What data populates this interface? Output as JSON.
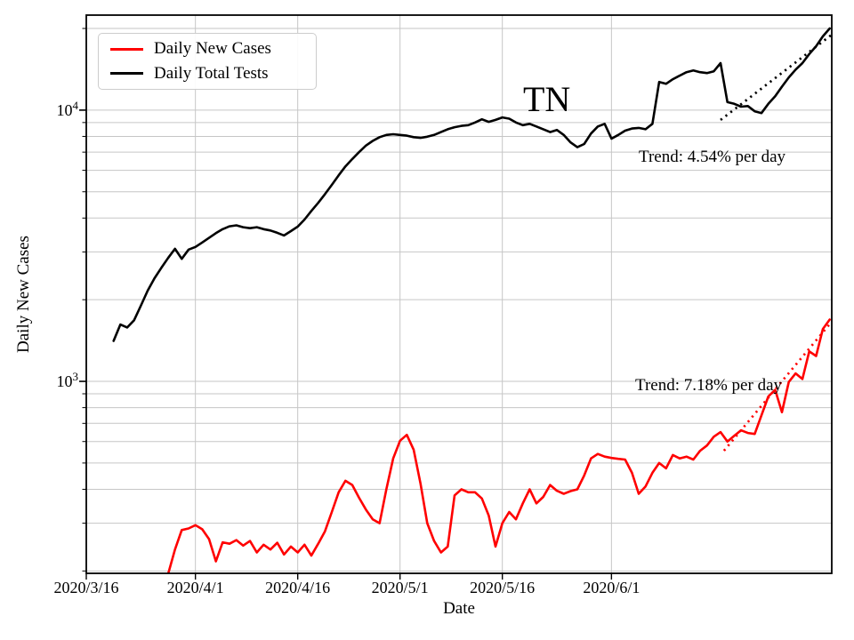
{
  "chart_data": {
    "type": "line",
    "title": "TN",
    "xlabel": "Date",
    "ylabel": "Daily New Cases",
    "y_scale": "log",
    "ylim": [
      196,
      22400
    ],
    "xlim": [
      0,
      109.3
    ],
    "x_unit": "days since 2020/3/16",
    "grid": true,
    "legend_position": "upper left",
    "x_ticks": [
      {
        "day": 0,
        "label": "2020/3/16"
      },
      {
        "day": 16,
        "label": "2020/4/1"
      },
      {
        "day": 31,
        "label": "2020/4/16"
      },
      {
        "day": 46,
        "label": "2020/5/1"
      },
      {
        "day": 61,
        "label": "2020/5/16"
      },
      {
        "day": 77,
        "label": "2020/6/1"
      }
    ],
    "y_ticks": [
      {
        "value": 10000,
        "base": "10",
        "exp": "4"
      },
      {
        "value": 1000,
        "base": "10",
        "exp": "3"
      }
    ],
    "series": [
      {
        "name": "Daily New Cases",
        "color": "#ff0000",
        "line_width": 2.6,
        "start_day": 12,
        "values": [
          195,
          240,
          283,
          287,
          295,
          285,
          262,
          217,
          255,
          252,
          260,
          248,
          258,
          234,
          250,
          240,
          254,
          230,
          246,
          234,
          250,
          228,
          252,
          280,
          330,
          390,
          430,
          415,
          372,
          337,
          310,
          300,
          400,
          520,
          604,
          635,
          560,
          420,
          300,
          258,
          234,
          246,
          380,
          400,
          390,
          390,
          370,
          320,
          246,
          300,
          330,
          310,
          355,
          400,
          355,
          375,
          415,
          395,
          385,
          394,
          400,
          450,
          520,
          540,
          528,
          522,
          518,
          515,
          460,
          385,
          410,
          460,
          500,
          478,
          535,
          520,
          528,
          515,
          555,
          580,
          625,
          650,
          600,
          630,
          660,
          645,
          640,
          750,
          880,
          930,
          770,
          995,
          1070,
          1020,
          1290,
          1240,
          1560,
          1690
        ]
      },
      {
        "name": "Daily Total Tests",
        "color": "#000000",
        "line_width": 2.6,
        "start_day": 4,
        "values": [
          1410,
          1620,
          1580,
          1680,
          1900,
          2160,
          2400,
          2620,
          2850,
          3080,
          2830,
          3060,
          3130,
          3250,
          3380,
          3520,
          3640,
          3730,
          3760,
          3700,
          3670,
          3700,
          3640,
          3600,
          3530,
          3450,
          3580,
          3720,
          3950,
          4250,
          4550,
          4900,
          5300,
          5750,
          6200,
          6600,
          7000,
          7400,
          7700,
          7950,
          8100,
          8150,
          8100,
          8050,
          7950,
          7900,
          7980,
          8100,
          8300,
          8500,
          8650,
          8750,
          8800,
          9000,
          9250,
          9050,
          9200,
          9400,
          9300,
          9000,
          8800,
          8900,
          8700,
          8500,
          8300,
          8450,
          8100,
          7600,
          7300,
          7500,
          8200,
          8700,
          8900,
          7850,
          8100,
          8400,
          8550,
          8600,
          8500,
          8900,
          12700,
          12500,
          13000,
          13400,
          13800,
          14000,
          13800,
          13700,
          13900,
          14900,
          10700,
          10550,
          10300,
          10350,
          9900,
          9750,
          10550,
          11250,
          12200,
          13200,
          14100,
          14900,
          16100,
          17200,
          18700,
          20000
        ]
      }
    ],
    "trend_lines": [
      {
        "name": "tests-trend",
        "color": "#000000",
        "style": "dotted",
        "rate_label": "Trend: 4.54% per day",
        "rate_pct_per_day": 4.54,
        "start_day": 93,
        "end_day": 109.5,
        "start_value": 9200
      },
      {
        "name": "cases-trend",
        "color": "#ff0000",
        "style": "dotted",
        "rate_label": "Trend: 7.18% per day",
        "rate_pct_per_day": 7.18,
        "start_day": 93.5,
        "end_day": 109.5,
        "start_value": 555
      }
    ]
  }
}
